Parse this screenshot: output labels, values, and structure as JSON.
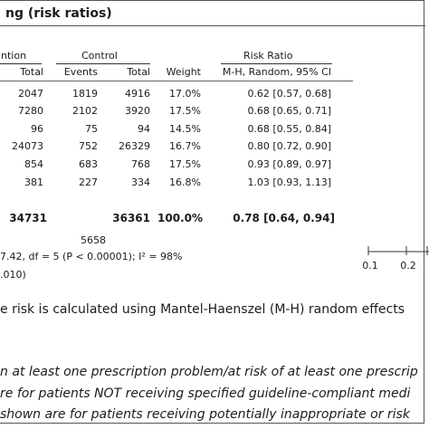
{
  "caption": "ng (risk ratios)",
  "groups": {
    "intervention": "ntion",
    "control": "Control",
    "ratio": "Risk Ratio"
  },
  "columns": {
    "int_total": "Total",
    "ctrl_events": "Events",
    "ctrl_total": "Total",
    "weight": "Weight",
    "method": "M-H, Random, 95% CI"
  },
  "rows": [
    {
      "int_total": "2047",
      "ctrl_events": "1819",
      "ctrl_total": "4916",
      "weight": "17.0%",
      "rr": "0.62 [0.57, 0.68]"
    },
    {
      "int_total": "7280",
      "ctrl_events": "2102",
      "ctrl_total": "3920",
      "weight": "17.5%",
      "rr": "0.68 [0.65, 0.71]"
    },
    {
      "int_total": "96",
      "ctrl_events": "75",
      "ctrl_total": "94",
      "weight": "14.5%",
      "rr": "0.68 [0.55, 0.84]"
    },
    {
      "int_total": "24073",
      "ctrl_events": "752",
      "ctrl_total": "26329",
      "weight": "16.7%",
      "rr": "0.80 [0.72, 0.90]"
    },
    {
      "int_total": "854",
      "ctrl_events": "683",
      "ctrl_total": "768",
      "weight": "17.5%",
      "rr": "0.93 [0.89, 0.97]"
    },
    {
      "int_total": "381",
      "ctrl_events": "227",
      "ctrl_total": "334",
      "weight": "16.8%",
      "rr": "1.03 [0.93, 1.13]"
    }
  ],
  "total_row": {
    "int_total": "34731",
    "ctrl_total": "36361",
    "weight": "100.0%",
    "rr": "0.78 [0.64, 0.94]"
  },
  "total_events": "5658",
  "heterogeneity": "7.42, df = 5 (P < 0.00001); I² = 98%",
  "overall_p": ".010)",
  "axis": {
    "ticks": [
      "0.1",
      "0.2"
    ]
  },
  "footnotes": [
    "e risk is calculated using Mantel-Haenszel (M-H) random effects",
    "n at least one prescription problem/at risk of at least one prescrip",
    "re for patients NOT receiving specified guideline-compliant medi",
    " shown are for patients receiving potentially inappropriate or risk"
  ]
}
